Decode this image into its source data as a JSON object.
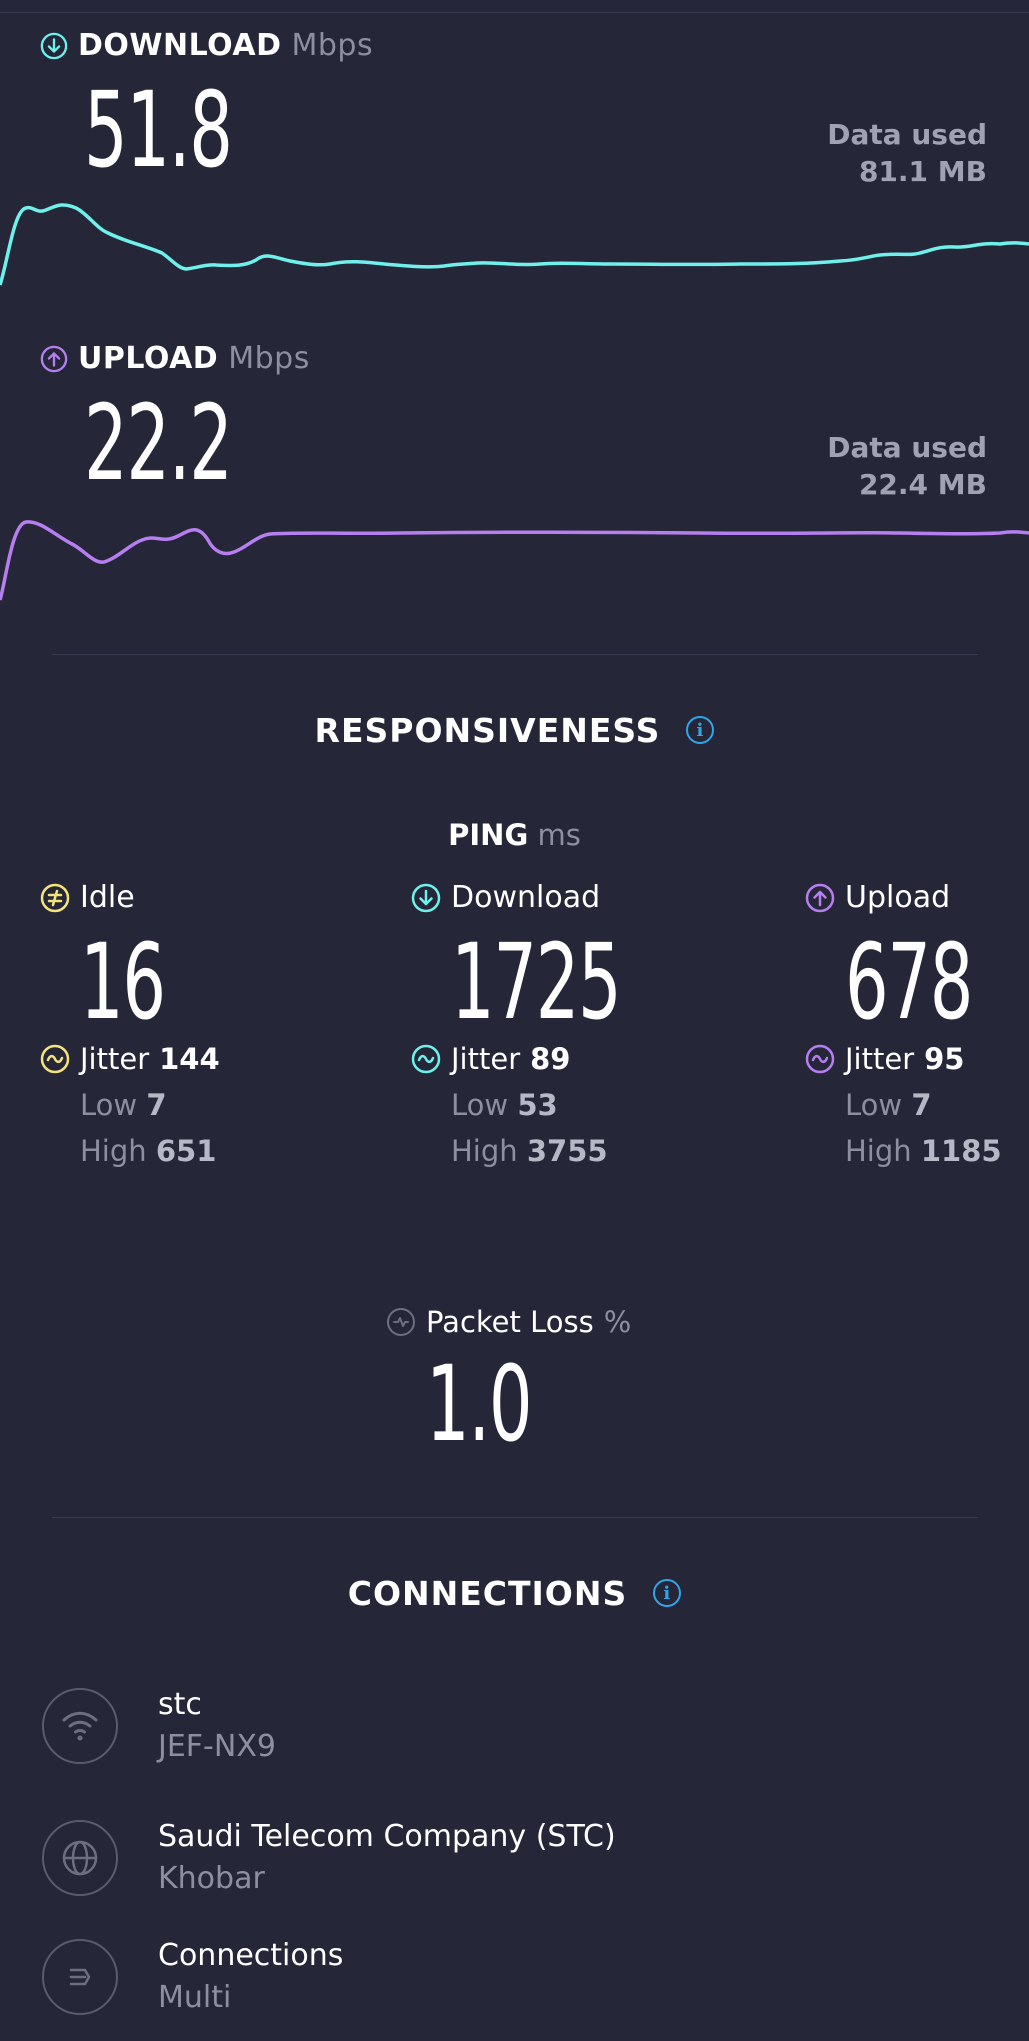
{
  "download": {
    "label": "DOWNLOAD",
    "unit": "Mbps",
    "value": "51.8",
    "data_used_label": "Data used",
    "data_used": "81.1 MB",
    "color": "#6ff0ea"
  },
  "upload": {
    "label": "UPLOAD",
    "unit": "Mbps",
    "value": "22.2",
    "data_used_label": "Data used",
    "data_used": "22.4 MB",
    "color": "#b77ef0"
  },
  "responsiveness": {
    "title": "RESPONSIVENESS",
    "ping_label": "PING",
    "ping_unit": "ms",
    "idle": {
      "label": "Idle",
      "value": "16",
      "jitter_label": "Jitter",
      "jitter": "144",
      "low_label": "Low",
      "low": "7",
      "high_label": "High",
      "high": "651",
      "color": "#f2e37c"
    },
    "download": {
      "label": "Download",
      "value": "1725",
      "jitter_label": "Jitter",
      "jitter": "89",
      "low_label": "Low",
      "low": "53",
      "high_label": "High",
      "high": "3755",
      "color": "#6ff0ea"
    },
    "upload": {
      "label": "Upload",
      "value": "678",
      "jitter_label": "Jitter",
      "jitter": "95",
      "low_label": "Low",
      "low": "7",
      "high_label": "High",
      "high": "1185",
      "color": "#b77ef0"
    },
    "packet_loss": {
      "label": "Packet Loss",
      "unit": "%",
      "value": "1.0"
    }
  },
  "connections": {
    "title": "CONNECTIONS",
    "items": [
      {
        "main": "stc",
        "sub": "JEF-NX9",
        "icon": "wifi-icon"
      },
      {
        "main": "Saudi Telecom Company (STC)",
        "sub": "Khobar",
        "icon": "globe-icon"
      },
      {
        "main": "Connections",
        "sub": "Multi",
        "icon": "multi-connections-icon"
      }
    ]
  },
  "colors": {
    "background": "#252638",
    "accent_info": "#2fa7e6"
  }
}
